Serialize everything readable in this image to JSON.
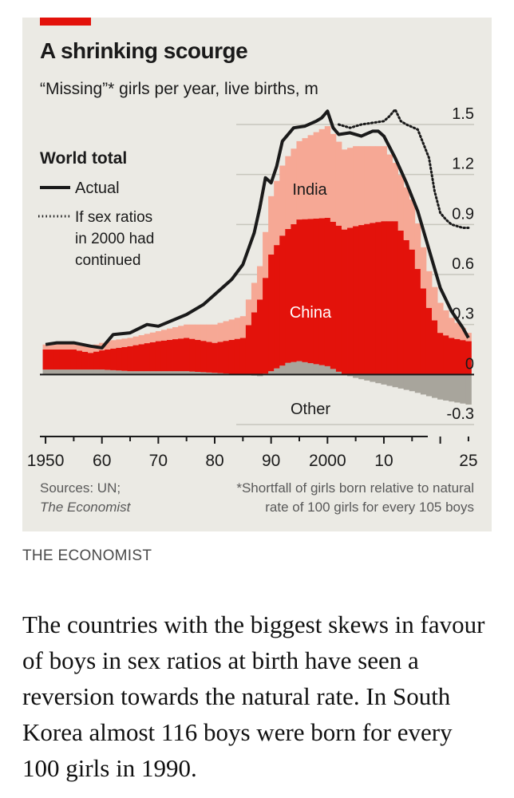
{
  "chart": {
    "title": "A shrinking scourge",
    "subtitle": "“Missing”* girls per year, live births, m",
    "legend": {
      "heading": "World total",
      "actual": "Actual",
      "counterfactual_line1": "If sex ratios",
      "counterfactual_line2": "in 2000 had",
      "counterfactual_line3": "continued"
    },
    "labels": {
      "india": "India",
      "china": "China",
      "other": "Other"
    },
    "source_line1": "Sources: UN;",
    "source_line2": "The Economist",
    "footnote_line1": "*Shortfall of girls born relative to natural",
    "footnote_line2": "rate of 100 girls for every 105 boys"
  },
  "chart_data": {
    "type": "area",
    "title": "A shrinking scourge",
    "subtitle": "“Missing”* girls per year, live births, m",
    "xlabel": "",
    "ylabel": "",
    "xlim": [
      1949,
      2026
    ],
    "ylim": [
      -0.3,
      1.5
    ],
    "x_ticks": [
      1950,
      1960,
      1970,
      1980,
      1990,
      2000,
      2010,
      2025
    ],
    "x_tick_labels": [
      "1950",
      "60",
      "70",
      "80",
      "90",
      "2000",
      "10",
      "25"
    ],
    "y_ticks": [
      -0.3,
      0,
      0.3,
      0.6,
      0.9,
      1.2,
      1.5
    ],
    "y_tick_labels": [
      "-0.3",
      "0",
      "0.3",
      "0.6",
      "0.9",
      "1.2",
      "1.5"
    ],
    "series": [
      {
        "name": "China",
        "stacked": true,
        "x": [
          1950,
          1955,
          1958,
          1962,
          1965,
          1970,
          1975,
          1980,
          1985,
          1988,
          1990,
          1992,
          1995,
          2000,
          2003,
          2005,
          2008,
          2010,
          2012,
          2015,
          2018,
          2020,
          2022,
          2025
        ],
        "values": [
          0.12,
          0.12,
          0.1,
          0.13,
          0.15,
          0.18,
          0.2,
          0.18,
          0.22,
          0.45,
          0.7,
          0.78,
          0.85,
          0.89,
          0.87,
          0.89,
          0.91,
          0.92,
          0.92,
          0.75,
          0.4,
          0.25,
          0.22,
          0.2
        ]
      },
      {
        "name": "India",
        "stacked": true,
        "x": [
          1950,
          1955,
          1958,
          1962,
          1965,
          1970,
          1975,
          1980,
          1985,
          1988,
          1990,
          1992,
          1995,
          2000,
          2003,
          2005,
          2008,
          2010,
          2012,
          2015,
          2018,
          2020,
          2022,
          2025
        ],
        "values": [
          0.03,
          0.04,
          0.04,
          0.05,
          0.05,
          0.06,
          0.08,
          0.11,
          0.13,
          0.2,
          0.35,
          0.42,
          0.47,
          0.55,
          0.48,
          0.48,
          0.46,
          0.45,
          0.35,
          0.3,
          0.22,
          0.18,
          0.12,
          0.05
        ]
      },
      {
        "name": "Other",
        "stacked": false,
        "x": [
          1950,
          1955,
          1960,
          1965,
          1970,
          1975,
          1980,
          1985,
          1988,
          1990,
          1993,
          1995,
          2000,
          2003,
          2005,
          2010,
          2015,
          2020,
          2025
        ],
        "values": [
          0.03,
          0.03,
          0.03,
          0.02,
          0.02,
          0.02,
          0.01,
          0.0,
          -0.01,
          0.02,
          0.07,
          0.08,
          0.05,
          0.0,
          -0.02,
          -0.06,
          -0.1,
          -0.15,
          -0.18
        ]
      },
      {
        "name": "Actual",
        "type": "line",
        "x": [
          1950,
          1952,
          1955,
          1958,
          1960,
          1962,
          1965,
          1968,
          1970,
          1975,
          1978,
          1980,
          1983,
          1985,
          1987,
          1988,
          1989,
          1990,
          1991,
          1992,
          1994,
          1996,
          1998,
          1999,
          2000,
          2001,
          2002,
          2004,
          2006,
          2008,
          2009,
          2010,
          2012,
          2014,
          2016,
          2018,
          2020,
          2022,
          2024,
          2025
        ],
        "values": [
          0.18,
          0.19,
          0.19,
          0.17,
          0.16,
          0.24,
          0.25,
          0.3,
          0.29,
          0.36,
          0.42,
          0.48,
          0.57,
          0.66,
          0.85,
          1.0,
          1.18,
          1.15,
          1.25,
          1.4,
          1.48,
          1.49,
          1.52,
          1.54,
          1.58,
          1.48,
          1.44,
          1.45,
          1.43,
          1.46,
          1.46,
          1.43,
          1.3,
          1.15,
          0.98,
          0.75,
          0.52,
          0.38,
          0.28,
          0.22
        ]
      },
      {
        "name": "If sex ratios in 2000 had continued",
        "type": "line",
        "style": "dotted",
        "x": [
          2002,
          2004,
          2006,
          2008,
          2010,
          2011,
          2012,
          2013,
          2014,
          2016,
          2018,
          2019,
          2020,
          2021,
          2022,
          2024,
          2025
        ],
        "values": [
          1.5,
          1.48,
          1.5,
          1.51,
          1.52,
          1.55,
          1.59,
          1.52,
          1.5,
          1.47,
          1.3,
          1.1,
          0.97,
          0.93,
          0.9,
          0.88,
          0.88
        ]
      }
    ],
    "annotations": [
      "India",
      "China",
      "Other"
    ],
    "legend": [
      "World total",
      "Actual",
      "If sex ratios in 2000 had continued"
    ],
    "grid": true
  },
  "publisher": "THE ECONOMIST",
  "article": {
    "paragraph": "The countries with the biggest skews in favour of boys in sex ratios at birth have seen a reversion towards the natural rate. In South Korea almost 116 boys were born for every 100 girls in 1990."
  },
  "colors": {
    "background": "#ebeae4",
    "china": "#e3120b",
    "india": "#f6a895",
    "other": "#a8a59c",
    "line": "#1a1a1a",
    "grid": "#c8c6bd",
    "accent": "#e3120b"
  }
}
